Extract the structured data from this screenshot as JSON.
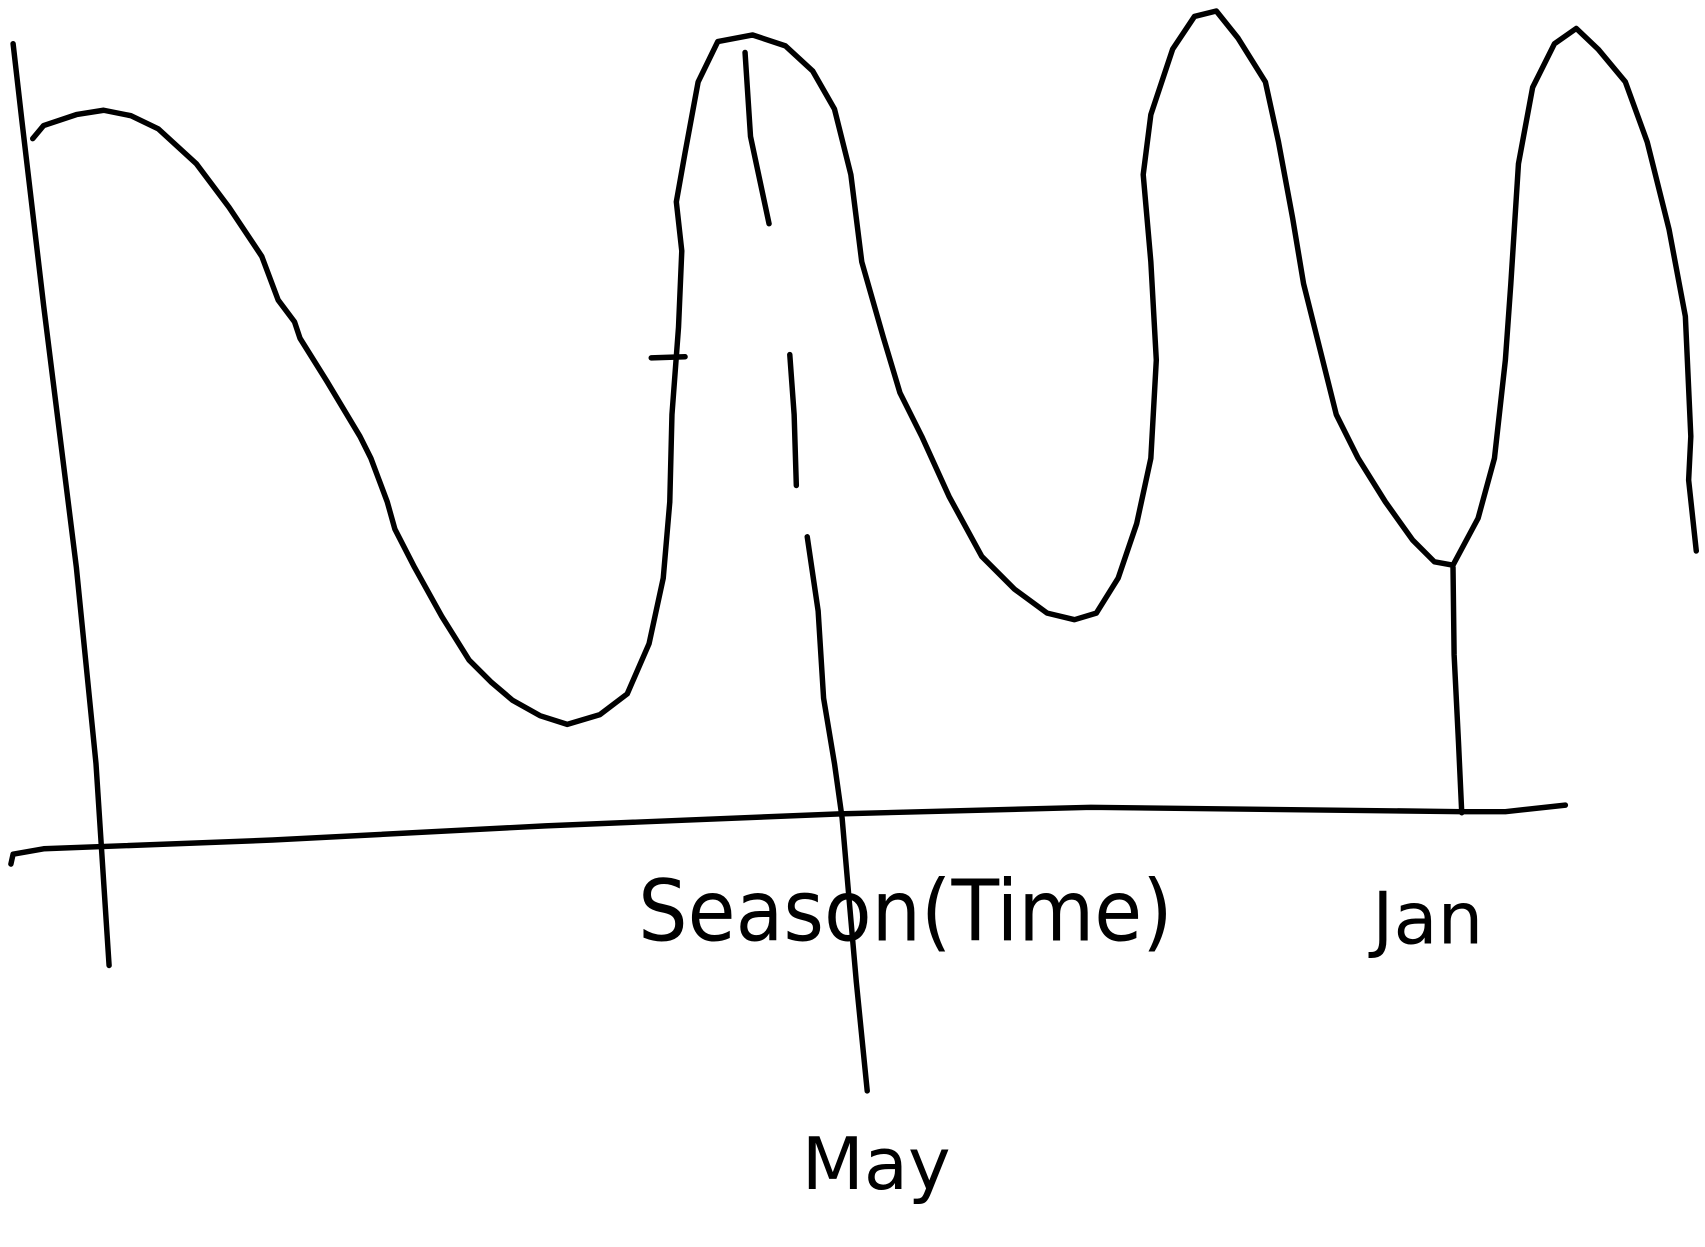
{
  "axis_label": "Season(Time)",
  "markers": [
    {
      "label": "May"
    },
    {
      "label": "Jan"
    }
  ]
}
